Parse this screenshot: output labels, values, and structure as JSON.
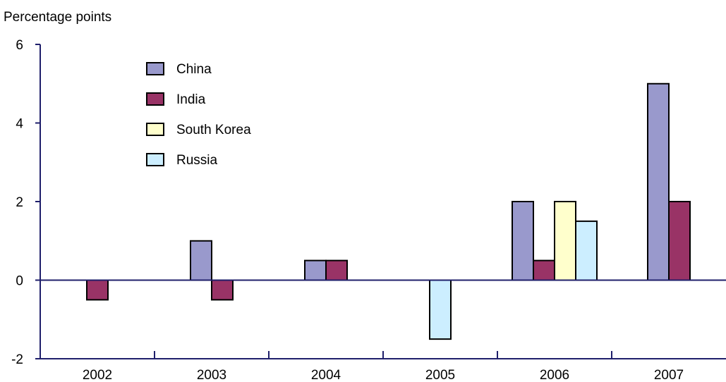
{
  "chart_data": {
    "type": "bar",
    "ylabel": "Percentage points",
    "categories": [
      "2002",
      "2003",
      "2004",
      "2005",
      "2006",
      "2007"
    ],
    "ylim": [
      -2,
      6
    ],
    "yticks": [
      -2,
      0,
      2,
      4,
      6
    ],
    "legend_position": "top-left",
    "grid": false,
    "series": [
      {
        "name": "China",
        "color": "#9999cc",
        "values": [
          null,
          1,
          0.5,
          null,
          2,
          5
        ]
      },
      {
        "name": "India",
        "color": "#993366",
        "values": [
          -0.5,
          -0.5,
          0.5,
          null,
          0.5,
          2
        ]
      },
      {
        "name": "South Korea",
        "color": "#ffffcc",
        "values": [
          null,
          null,
          null,
          null,
          2,
          null
        ]
      },
      {
        "name": "Russia",
        "color": "#cceeff",
        "values": [
          null,
          null,
          null,
          -1.5,
          1.5,
          null
        ]
      }
    ]
  }
}
